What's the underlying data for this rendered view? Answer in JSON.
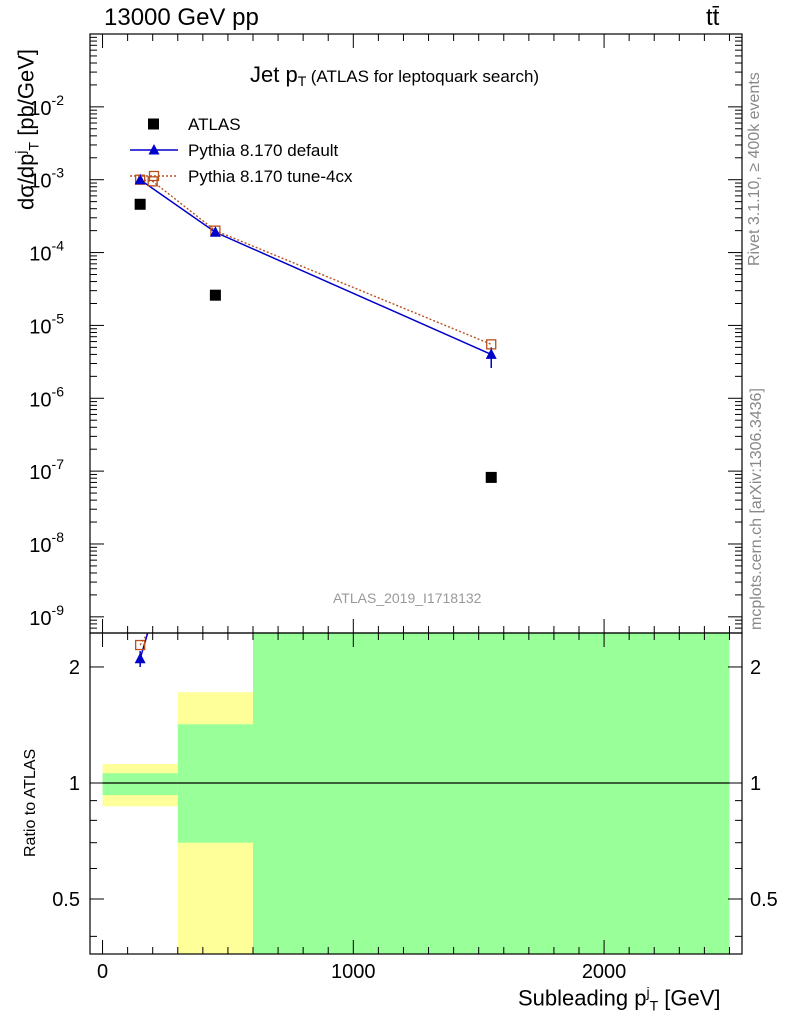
{
  "header": {
    "energy_label": "13000 GeV pp",
    "process_label": "tt̄"
  },
  "side_text": {
    "rivet": "Rivet 3.1.10, ≥ 400k events",
    "mcplots": "mcplots.cern.ch [arXiv:1306.3436]"
  },
  "analysis_id": "ATLAS_2019_I1718132",
  "colors": {
    "atlas": "#000000",
    "default": "#0000cc",
    "tune": "#b8501e",
    "band_yellow": "#ffff99",
    "band_green": "#99ff99"
  },
  "chart_data": [
    {
      "type": "scatter",
      "title_main": "Jet p",
      "title_sub": "T",
      "title_rest": "(ATLAS for leptoquark search)",
      "ylabel": "dσ/dp",
      "ylabel_sub": "T",
      "ylabel_sup": "j",
      "ylabel_unit": "[pb/GeV]",
      "yscale": "log",
      "ylim": [
        6e-10,
        0.1
      ],
      "xlim": [
        -50,
        2550
      ],
      "y_tick_labels": [
        "10^-9",
        "10^-8",
        "10^-7",
        "10^-6",
        "10^-5",
        "10^-4",
        "10^-3",
        "10^-2"
      ],
      "legend_position": "top-left",
      "series": [
        {
          "name": "ATLAS",
          "marker": "square",
          "x": [
            150,
            450,
            1550
          ],
          "y": [
            0.00046,
            2.6e-05,
            8.2e-08
          ]
        },
        {
          "name": "Pythia 8.170 default",
          "marker": "triangle",
          "x": [
            150,
            450,
            1550
          ],
          "y": [
            0.001,
            0.00019,
            4e-06
          ],
          "yerr_low": [
            0,
            0,
            1.4e-06
          ],
          "yerr_high": [
            0,
            0,
            1e-06
          ]
        },
        {
          "name": "Pythia 8.170 tune-4cx",
          "marker": "open-square",
          "x": [
            150,
            200,
            450,
            1550
          ],
          "y": [
            0.001,
            0.00095,
            0.0002,
            5.5e-06
          ]
        }
      ]
    },
    {
      "type": "scatter",
      "ylabel": "Ratio to ATLAS",
      "xlabel": "Subleading p",
      "xlabel_sub": "T",
      "xlabel_sup": "j",
      "xlabel_unit": "[GeV]",
      "yscale": "log",
      "ylim": [
        0.36,
        2.45
      ],
      "xlim": [
        -50,
        2550
      ],
      "x_tick_labels": [
        "0",
        "1000",
        "2000"
      ],
      "y_tick_labels": [
        "0.5",
        "1",
        "2"
      ],
      "bands": [
        {
          "x0": 0,
          "x1": 300,
          "yellow": [
            0.87,
            1.12
          ],
          "green": [
            0.93,
            1.06
          ]
        },
        {
          "x0": 300,
          "x1": 600,
          "yellow": [
            0.36,
            1.72
          ],
          "green": [
            0.7,
            1.42
          ]
        },
        {
          "x0": 600,
          "x1": 2500,
          "yellow": [
            0.36,
            2.45
          ],
          "green": [
            0.36,
            2.45
          ]
        }
      ],
      "series": [
        {
          "name": "Pythia 8.170 default",
          "x": [
            150,
            180
          ],
          "y": [
            2.1,
            2.45
          ],
          "yerr": [
            0.1,
            0
          ]
        },
        {
          "name": "Pythia 8.170 tune-4cx",
          "x": [
            150,
            180
          ],
          "y": [
            2.28,
            2.45
          ]
        }
      ]
    }
  ]
}
